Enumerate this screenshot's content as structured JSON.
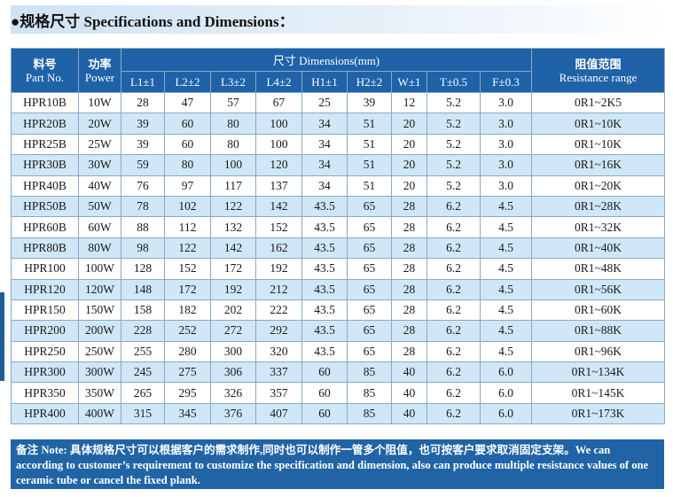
{
  "title": "●规格尺寸 Specifications and Dimensions：",
  "header": {
    "part_zh": "料号",
    "part_en": "Part No.",
    "power_zh": "功率",
    "power_en": "Power",
    "dimensions": "尺寸 Dimensions(mm)",
    "range_zh": "阻值范围",
    "range_en": "Resistance range",
    "dims": [
      "L1±1",
      "L2±2",
      "L3±2",
      "L4±2",
      "H1±1",
      "H2±2",
      "W±1",
      "T±0.5",
      "F±0.3"
    ]
  },
  "rows": [
    {
      "part": "HPR10B",
      "power": "10W",
      "l1": "28",
      "l2": "47",
      "l3": "57",
      "l4": "67",
      "h1": "25",
      "h2": "39",
      "w": "12",
      "t": "5.2",
      "f": "3.0",
      "range": "0R1~2K5"
    },
    {
      "part": "HPR20B",
      "power": "20W",
      "l1": "39",
      "l2": "60",
      "l3": "80",
      "l4": "100",
      "h1": "34",
      "h2": "51",
      "w": "20",
      "t": "5.2",
      "f": "3.0",
      "range": "0R1~10K"
    },
    {
      "part": "HPR25B",
      "power": "25W",
      "l1": "39",
      "l2": "60",
      "l3": "80",
      "l4": "100",
      "h1": "34",
      "h2": "51",
      "w": "20",
      "t": "5.2",
      "f": "3.0",
      "range": "0R1~10K"
    },
    {
      "part": "HPR30B",
      "power": "30W",
      "l1": "59",
      "l2": "80",
      "l3": "100",
      "l4": "120",
      "h1": "34",
      "h2": "51",
      "w": "20",
      "t": "5.2",
      "f": "3.0",
      "range": "0R1~16K"
    },
    {
      "part": "HPR40B",
      "power": "40W",
      "l1": "76",
      "l2": "97",
      "l3": "117",
      "l4": "137",
      "h1": "34",
      "h2": "51",
      "w": "20",
      "t": "5.2",
      "f": "3.0",
      "range": "0R1~20K"
    },
    {
      "part": "HPR50B",
      "power": "50W",
      "l1": "78",
      "l2": "102",
      "l3": "122",
      "l4": "142",
      "h1": "43.5",
      "h2": "65",
      "w": "28",
      "t": "6.2",
      "f": "4.5",
      "range": "0R1~28K"
    },
    {
      "part": "HPR60B",
      "power": "60W",
      "l1": "88",
      "l2": "112",
      "l3": "132",
      "l4": "152",
      "h1": "43.5",
      "h2": "65",
      "w": "28",
      "t": "6.2",
      "f": "4.5",
      "range": "0R1~32K"
    },
    {
      "part": "HPR80B",
      "power": "80W",
      "l1": "98",
      "l2": "122",
      "l3": "142",
      "l4": "162",
      "h1": "43.5",
      "h2": "65",
      "w": "28",
      "t": "6.2",
      "f": "4.5",
      "range": "0R1~40K"
    },
    {
      "part": "HPR100",
      "power": "100W",
      "l1": "128",
      "l2": "152",
      "l3": "172",
      "l4": "192",
      "h1": "43.5",
      "h2": "65",
      "w": "28",
      "t": "6.2",
      "f": "4.5",
      "range": "0R1~48K"
    },
    {
      "part": "HPR120",
      "power": "120W",
      "l1": "148",
      "l2": "172",
      "l3": "192",
      "l4": "212",
      "h1": "43.5",
      "h2": "65",
      "w": "28",
      "t": "6.2",
      "f": "4.5",
      "range": "0R1~56K"
    },
    {
      "part": "HPR150",
      "power": "150W",
      "l1": "158",
      "l2": "182",
      "l3": "202",
      "l4": "222",
      "h1": "43.5",
      "h2": "65",
      "w": "28",
      "t": "6.2",
      "f": "4.5",
      "range": "0R1~60K"
    },
    {
      "part": "HPR200",
      "power": "200W",
      "l1": "228",
      "l2": "252",
      "l3": "272",
      "l4": "292",
      "h1": "43.5",
      "h2": "65",
      "w": "28",
      "t": "6.2",
      "f": "4.5",
      "range": "0R1~88K"
    },
    {
      "part": "HPR250",
      "power": "250W",
      "l1": "255",
      "l2": "280",
      "l3": "300",
      "l4": "320",
      "h1": "43.5",
      "h2": "65",
      "w": "28",
      "t": "6.2",
      "f": "4.5",
      "range": "0R1~96K"
    },
    {
      "part": "HPR300",
      "power": "300W",
      "l1": "245",
      "l2": "275",
      "l3": "306",
      "l4": "337",
      "h1": "60",
      "h2": "85",
      "w": "40",
      "t": "6.2",
      "f": "6.0",
      "range": "0R1~134K"
    },
    {
      "part": "HPR350",
      "power": "350W",
      "l1": "265",
      "l2": "295",
      "l3": "326",
      "l4": "357",
      "h1": "60",
      "h2": "85",
      "w": "40",
      "t": "6.2",
      "f": "6.0",
      "range": "0R1~145K"
    },
    {
      "part": "HPR400",
      "power": "400W",
      "l1": "315",
      "l2": "345",
      "l3": "376",
      "l4": "407",
      "h1": "60",
      "h2": "85",
      "w": "40",
      "t": "6.2",
      "f": "6.0",
      "range": "0R1~173K"
    }
  ],
  "note": "备注 Note: 具体规格尺寸可以根据客户的需求制作,同时也可以制作一管多个阻值，也可按客户要求取消固定支架。We can according to customer’s requirement to customize the specification and dimension, also can produce multiple resistance values of one ceramic tube or cancel the fixed plank."
}
